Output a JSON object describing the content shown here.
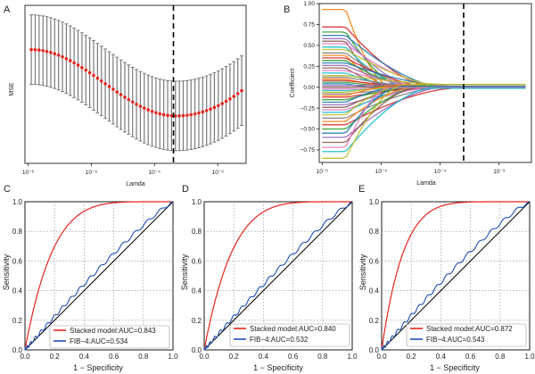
{
  "chart_data": [
    {
      "panel": "A",
      "type": "line",
      "subtype": "lasso-cv-mse-with-error-bars",
      "xscale": "log10",
      "xlabel": "Lamda",
      "ylabel": "MSE",
      "x_tick_exponents": [
        -6,
        -5,
        -4,
        -3
      ],
      "x_tick_labels": [
        "10⁻⁶",
        "10⁻⁵",
        "10⁻⁴",
        "10⁻³"
      ],
      "xlim_log10": [
        -6.05,
        -2.55
      ],
      "ylim": [
        0,
        1
      ],
      "optimal_log10_lambda": -3.7,
      "n_points": 55,
      "mean_curve": {
        "start": 0.72,
        "min": 0.3,
        "min_at_log10": -3.65,
        "end": 0.46
      },
      "error_half_width": 0.22,
      "colors": {
        "mean": "#e8251f",
        "error": "#7a7a7a",
        "cutoff": "#000000"
      }
    },
    {
      "panel": "B",
      "type": "line",
      "subtype": "lasso-coefficient-paths",
      "xscale": "log10",
      "xlabel": "Lamda",
      "ylabel": "Coefficient",
      "x_tick_exponents": [
        -6,
        -5,
        -4,
        -3
      ],
      "x_tick_labels": [
        "10⁻⁶",
        "10⁻⁵",
        "10⁻⁴",
        "10⁻³"
      ],
      "y_ticks": [
        -0.75,
        -0.5,
        -0.25,
        0.0,
        0.25,
        0.5,
        0.75,
        1.0
      ],
      "y_tick_labels": [
        "−0.75",
        "−0.50",
        "−0.25",
        "0.00",
        "0.25",
        "0.50",
        "0.75",
        "1.00"
      ],
      "xlim_log10": [
        -6.05,
        -2.45
      ],
      "ylim": [
        -0.9,
        1.0
      ],
      "optimal_log10_lambda": -3.6,
      "path_start_values": [
        0.93,
        0.72,
        0.66,
        0.62,
        0.58,
        0.55,
        0.52,
        0.48,
        0.45,
        0.41,
        0.38,
        0.35,
        0.32,
        0.29,
        0.26,
        0.23,
        0.2,
        0.17,
        0.14,
        0.12,
        0.1,
        0.08,
        0.06,
        0.04,
        0.02,
        0.0,
        -0.02,
        -0.04,
        -0.06,
        -0.08,
        -0.1,
        -0.12,
        -0.15,
        -0.18,
        -0.21,
        -0.24,
        -0.27,
        -0.3,
        -0.33,
        -0.37,
        -0.41,
        -0.45,
        -0.5,
        -0.55,
        -0.6,
        -0.66,
        -0.72,
        -0.77,
        -0.85
      ],
      "path_end_values": [
        0.03,
        0.02,
        0.0,
        -0.01,
        -0.02,
        -0.03
      ],
      "palette": [
        "#ff7f0e",
        "#d62728",
        "#2ca02c",
        "#1f77b4",
        "#9467bd",
        "#8c564b",
        "#e377c2",
        "#17becf",
        "#bcbd22",
        "#7f7f7f"
      ]
    },
    {
      "panel": "C",
      "type": "line",
      "subtype": "roc",
      "xlabel": "1 − Specificity",
      "ylabel": "Sensitivity",
      "ticks": [
        0.0,
        0.2,
        0.4,
        0.6,
        0.8,
        1.0
      ],
      "tick_labels": [
        "0.0",
        "0.2",
        "0.4",
        "0.6",
        "0.8",
        "1.0"
      ],
      "xlim": [
        0,
        1
      ],
      "ylim": [
        0,
        1
      ],
      "series": [
        {
          "name": "Stacked model",
          "auc": 0.843,
          "legend_label": "Stacked model:AUC=0.843",
          "color": "#e8251f"
        },
        {
          "name": "FIB-4",
          "auc": 0.534,
          "legend_label": "FIB−4:AUC=0.534",
          "color": "#1f4fb4"
        }
      ],
      "legend": "bottom-right"
    },
    {
      "panel": "D",
      "type": "line",
      "subtype": "roc",
      "xlabel": "1 − Specificity",
      "ylabel": "Sensitivity",
      "ticks": [
        0.0,
        0.2,
        0.4,
        0.6,
        0.8,
        1.0
      ],
      "tick_labels": [
        "0.0",
        "0.2",
        "0.4",
        "0.6",
        "0.8",
        "1.0"
      ],
      "xlim": [
        0,
        1
      ],
      "ylim": [
        0,
        1
      ],
      "series": [
        {
          "name": "Stacked model",
          "auc": 0.84,
          "legend_label": "Stacked model:AUC=0.840",
          "color": "#e8251f"
        },
        {
          "name": "FIB-4",
          "auc": 0.532,
          "legend_label": "FIB−4:AUC=0.532",
          "color": "#1f4fb4"
        }
      ],
      "legend": "bottom-right"
    },
    {
      "panel": "E",
      "type": "line",
      "subtype": "roc",
      "xlabel": "1 − Specificity",
      "ylabel": "Sensitivity",
      "ticks": [
        0.0,
        0.2,
        0.4,
        0.6,
        0.8,
        1.0
      ],
      "tick_labels": [
        "0.0",
        "0.2",
        "0.4",
        "0.6",
        "0.8",
        "1.0"
      ],
      "xlim": [
        0,
        1
      ],
      "ylim": [
        0,
        1
      ],
      "series": [
        {
          "name": "Stacked model",
          "auc": 0.872,
          "legend_label": "Stacked model:AUC=0.872",
          "color": "#e8251f"
        },
        {
          "name": "FIB-4",
          "auc": 0.543,
          "legend_label": "FIB−4:AUC=0.543",
          "color": "#1f4fb4"
        }
      ],
      "legend": "bottom-right"
    }
  ]
}
